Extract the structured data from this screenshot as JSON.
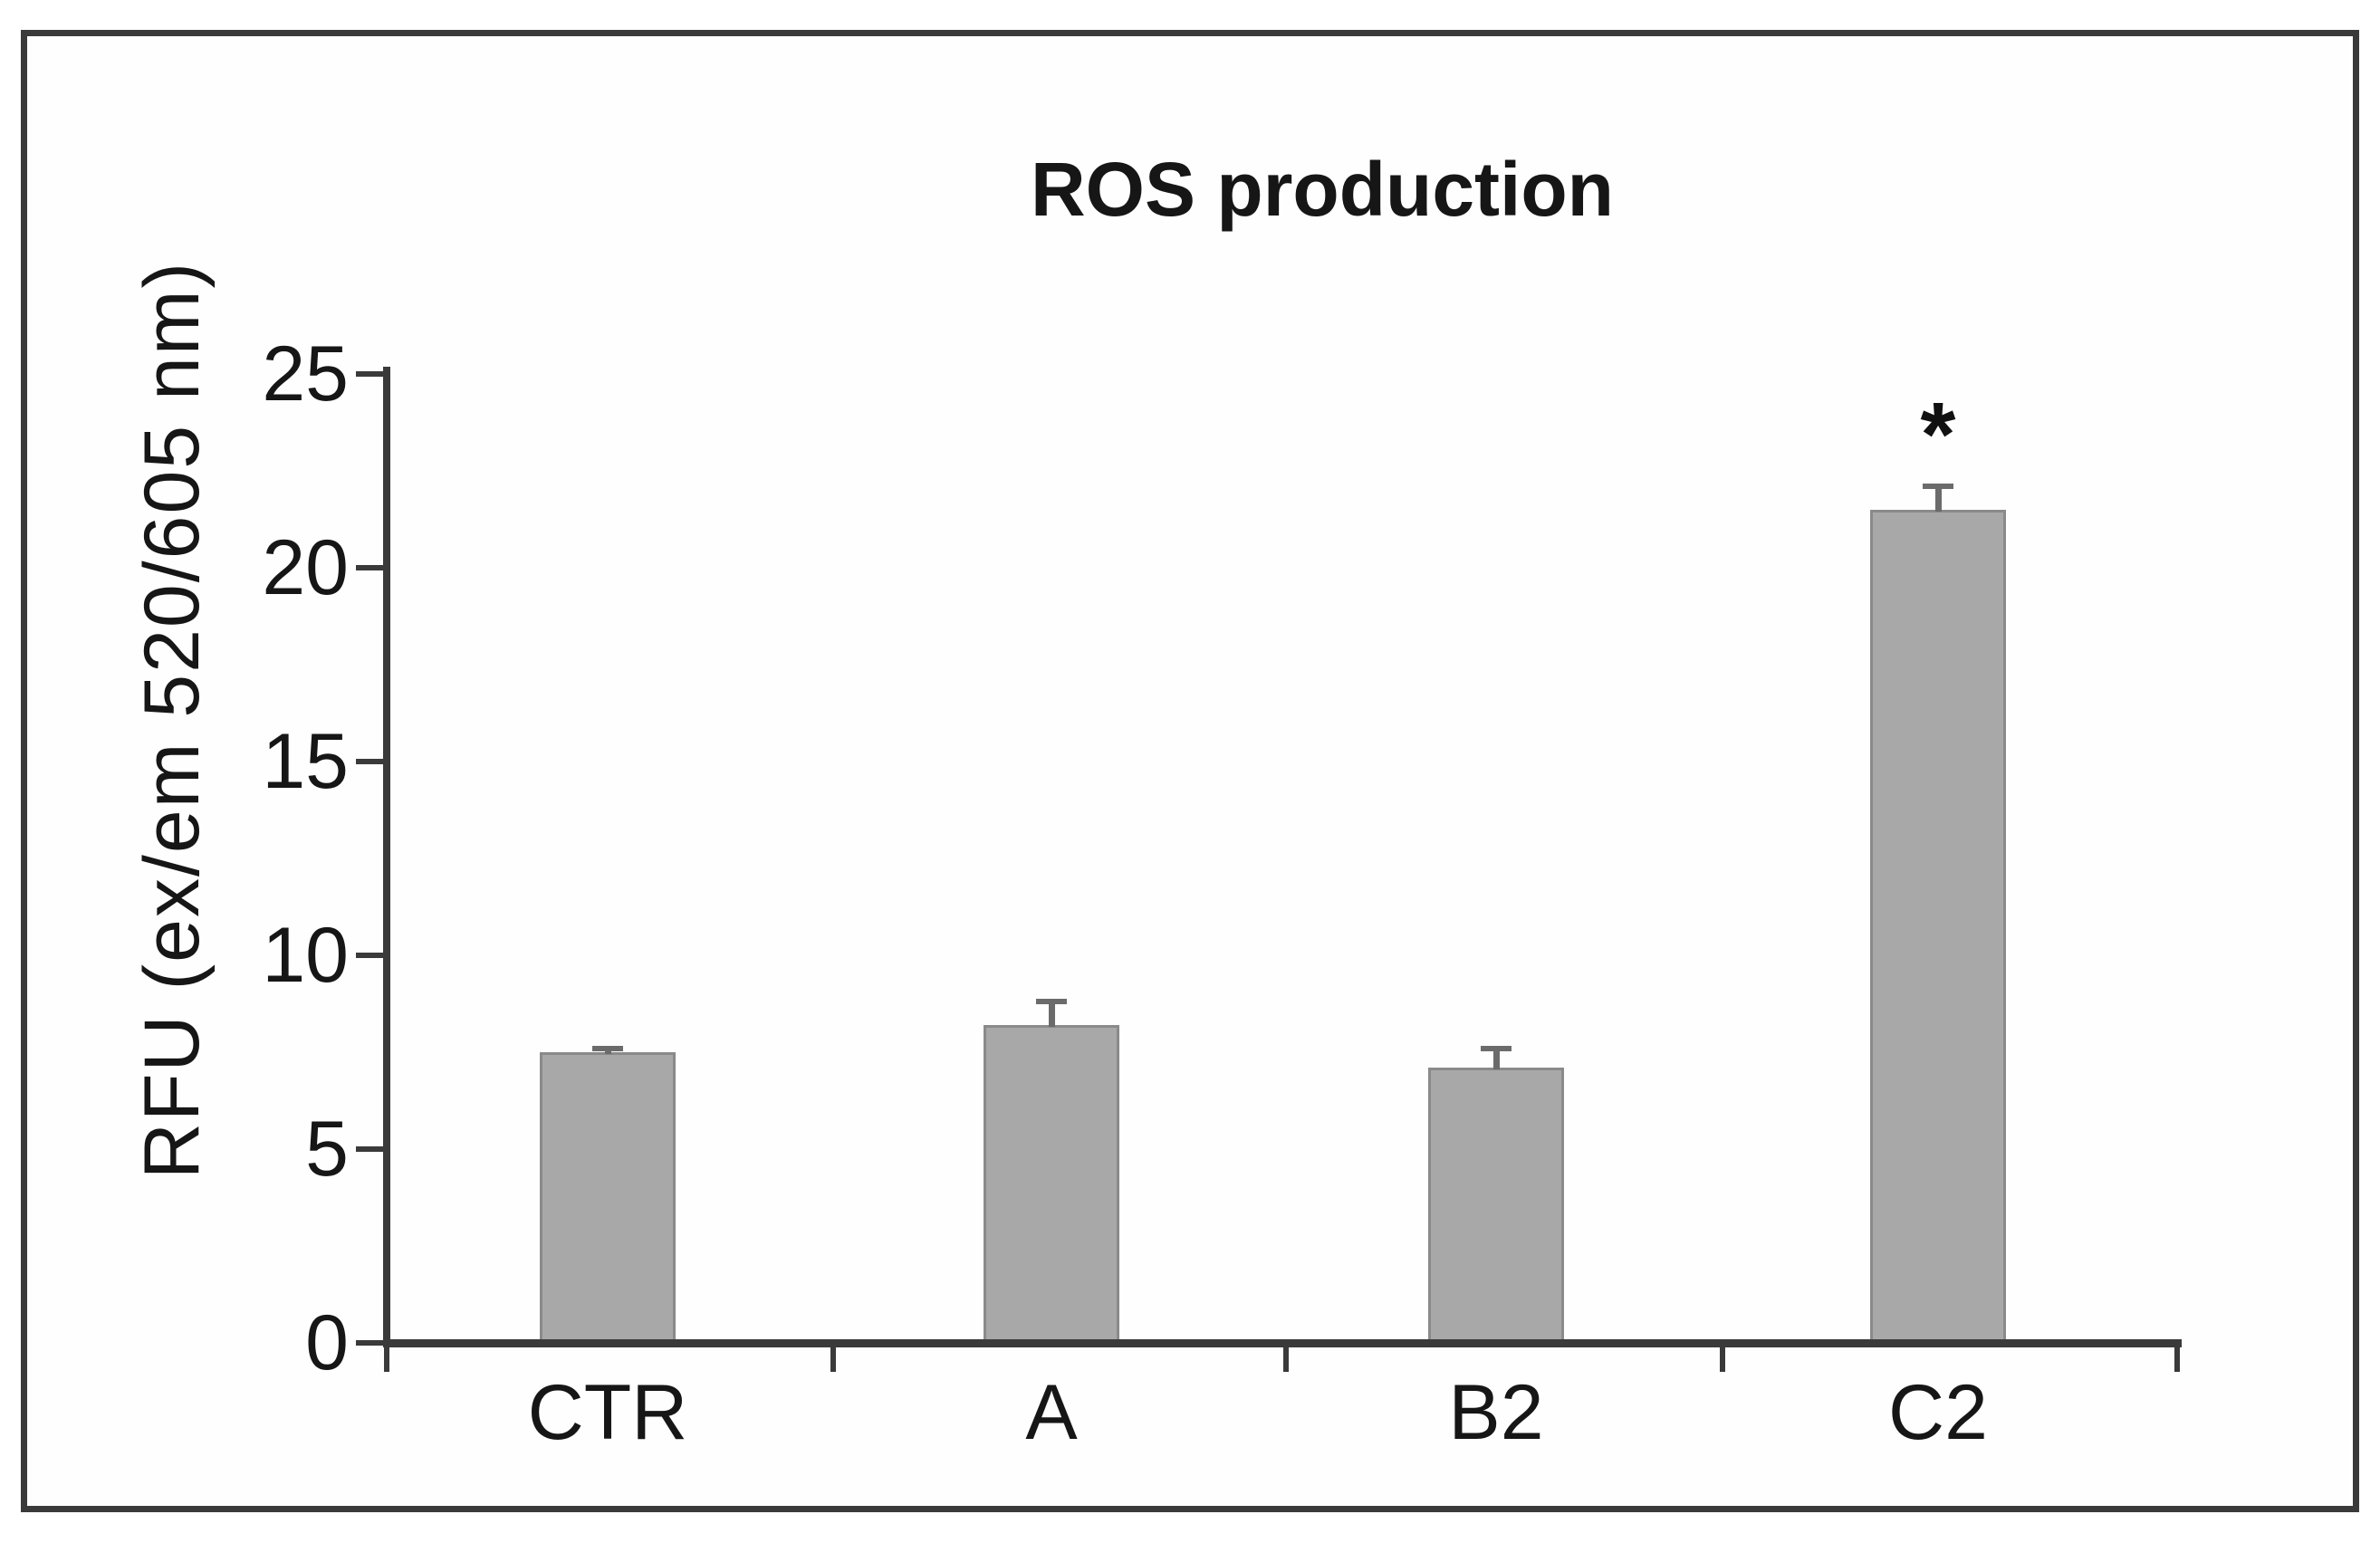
{
  "figure": {
    "title": "ROS production",
    "y_axis_label": "RFU (ex/em 520/605 nm)",
    "annotation_symbol": "*"
  },
  "chart_data": {
    "type": "bar",
    "title": "ROS production",
    "xlabel": "",
    "ylabel": "RFU (ex/em 520/605 nm)",
    "categories": [
      "CTR",
      "A",
      "B2",
      "C2"
    ],
    "series": [
      {
        "name": "ROS production",
        "values": [
          7.5,
          8.2,
          7.1,
          21.5
        ],
        "errors": [
          0.1,
          0.6,
          0.5,
          0.6
        ]
      }
    ],
    "annotations": [
      {
        "category": "C2",
        "text": "*",
        "position": "above-error-bar"
      }
    ],
    "ylim": [
      0,
      25
    ],
    "yticks": [
      0,
      5,
      10,
      15,
      20,
      25
    ],
    "grid": false,
    "legend_visible": false,
    "colors": {
      "bar_fill": "#a8a8a8",
      "bar_border": "#8a8a8a",
      "error_bar": "#6b6b6b",
      "axis": "#3a3a3a",
      "text": "#161616",
      "frame_border": "#3a3a3a",
      "background": "#ffffff"
    }
  }
}
